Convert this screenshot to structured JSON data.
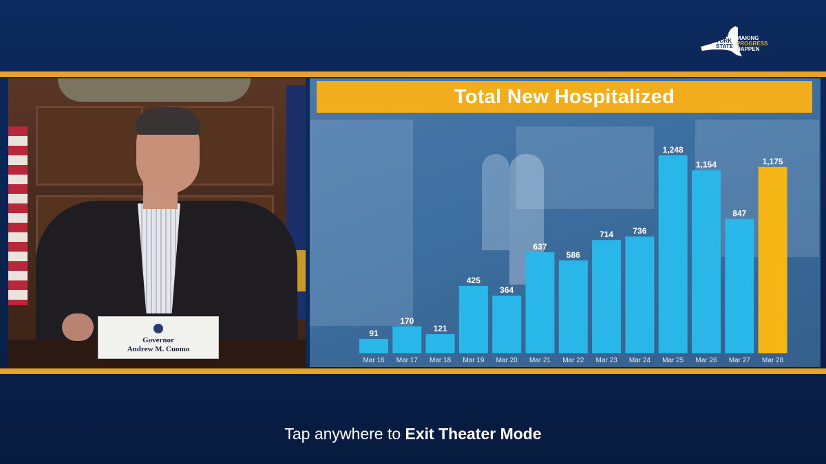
{
  "logo": {
    "state_name": [
      "NEW",
      "YORK",
      "STATE"
    ],
    "tagline": [
      "MAKING",
      "PROGRESS",
      "HAPPEN"
    ]
  },
  "placard": {
    "title": "Governor",
    "name": "Andrew M. Cuomo"
  },
  "chart_data": {
    "type": "bar",
    "title": "Total New Hospitalized",
    "categories": [
      "Mar 16",
      "Mar 17",
      "Mar 18",
      "Mar 19",
      "Mar 20",
      "Mar 21",
      "Mar 22",
      "Mar 23",
      "Mar 24",
      "Mar 25",
      "Mar 26",
      "Mar 27",
      "Mar 28"
    ],
    "values": [
      91,
      170,
      121,
      425,
      364,
      637,
      586,
      714,
      736,
      1248,
      1154,
      847,
      1175
    ],
    "value_labels": [
      "91",
      "170",
      "121",
      "425",
      "364",
      "637",
      "586",
      "714",
      "736",
      "1,248",
      "1,154",
      "847",
      "1,175"
    ],
    "ylim": [
      0,
      1300
    ],
    "colors": {
      "default": "#29b6e8",
      "highlight": "#f5b616"
    },
    "highlight_index": 12,
    "grid": false
  },
  "overlay": {
    "hint_prefix": "Tap anywhere to ",
    "hint_action": "Exit Theater Mode"
  },
  "colors": {
    "background": "#0c2a5e",
    "accent_line": "#e8a320"
  }
}
